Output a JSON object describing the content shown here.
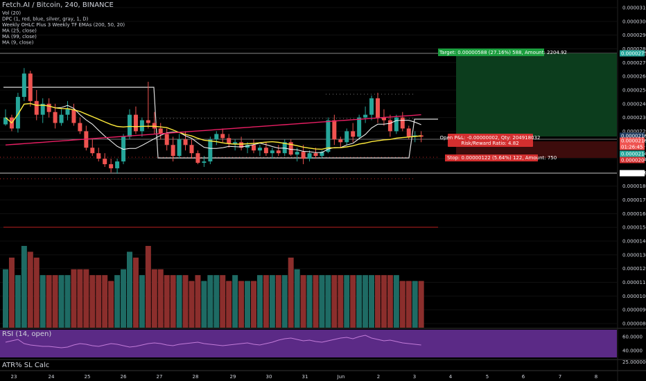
{
  "legend": {
    "title": "Fetch.AI / Bitcoin, 240, BINANCE",
    "items": [
      "Vol (20)",
      "DPC (1, red, blue, silver, gray, 1, D)",
      "Weekly OHLC Plus 3 Weekly TF EMAs (200, 50, 20)",
      "MA (25, close)",
      "MA (99, close)",
      "MA (9, close)"
    ]
  },
  "price_axis": {
    "ticks": [
      "0.00003100",
      "0.00003000",
      "0.00002900",
      "0.00002800",
      "0.00002700",
      "0.00002600",
      "0.00002500",
      "0.00002400",
      "0.00002300",
      "0.00002200",
      "0.00002100",
      "0.00002000",
      "0.00001900",
      "0.00001800",
      "0.00001700",
      "0.00001600",
      "0.00001500",
      "0.00001400",
      "0.00001300",
      "0.00001200",
      "0.00001100",
      "0.00001000",
      "0.00000900",
      "0.00000800"
    ],
    "tags": [
      {
        "text": "0.00002753",
        "color": "#26a69a"
      },
      {
        "text": "0.00002165",
        "color": "#1e3a5f"
      },
      {
        "text": "0.00002163",
        "color": "#ef5350"
      },
      {
        "text": "01:26:45",
        "color": "#ef5350"
      },
      {
        "text": "0.00002143",
        "color": "#26a69a"
      },
      {
        "text": "0.00002043",
        "color": "#d32f2f"
      },
      {
        "text": "0.00001895",
        "color": "#ffffff"
      }
    ]
  },
  "rsi_panel": {
    "label": "RSI (14, open)",
    "ticks": [
      "60.0000",
      "40.0000"
    ],
    "sep_label": "25.0000000"
  },
  "atr_panel": {
    "label": "ATR% SL Calc"
  },
  "time_axis": [
    "23",
    "24",
    "25",
    "26",
    "27",
    "28",
    "29",
    "30",
    "31",
    "Jun",
    "2",
    "3",
    "4",
    "5",
    "6",
    "7",
    "8"
  ],
  "position": {
    "target": "Target: 0.00000588 (27.16%) 588, Amount: 2204.92",
    "open_pl": "Open P&L: -0.00000002, Qty: 204918032",
    "rr": "Risk/Reward Ratio: 4.82",
    "stop": "Stop: 0.00000122 (5.64%) 122, Amount: 750"
  },
  "colors": {
    "up": "#26a69a",
    "down": "#ef5350",
    "vol_up": "#1e6b64",
    "vol_down": "#8b2e2c",
    "ma_yellow": "#ffeb3b",
    "ma_white": "#ffffff",
    "ema_pink": "#e91e63",
    "rsi_bg": "#5b2a86",
    "rsi_line": "#c27bd8"
  },
  "chart_data": {
    "type": "candlestick",
    "timeframe": "240",
    "candles": [
      [
        2.25e-05,
        2.36e-05,
        2.24e-05,
        2.3e-05
      ],
      [
        2.3e-05,
        2.32e-05,
        2.2e-05,
        2.22e-05
      ],
      [
        2.22e-05,
        2.48e-05,
        2.19e-05,
        2.45e-05
      ],
      [
        2.45e-05,
        2.66e-05,
        2.42e-05,
        2.62e-05
      ],
      [
        2.62e-05,
        2.64e-05,
        2.38e-05,
        2.42e-05
      ],
      [
        2.42e-05,
        2.5e-05,
        2.28e-05,
        2.32e-05
      ],
      [
        2.32e-05,
        2.44e-05,
        2.26e-05,
        2.4e-05
      ],
      [
        2.4e-05,
        2.44e-05,
        2.3e-05,
        2.34e-05
      ],
      [
        2.34e-05,
        2.4e-05,
        2.22e-05,
        2.26e-05
      ],
      [
        2.26e-05,
        2.36e-05,
        2.24e-05,
        2.32e-05
      ],
      [
        2.32e-05,
        2.42e-05,
        2.28e-05,
        2.36e-05
      ],
      [
        2.36e-05,
        2.4e-05,
        2.24e-05,
        2.26e-05
      ],
      [
        2.26e-05,
        2.3e-05,
        2.18e-05,
        2.2e-05
      ],
      [
        2.2e-05,
        2.24e-05,
        2.06e-05,
        2.08e-05
      ],
      [
        2.08e-05,
        2.14e-05,
        2.02e-05,
        2.04e-05
      ],
      [
        2.04e-05,
        2.08e-05,
        1.98e-05,
        2e-05
      ],
      [
        2e-05,
        2.04e-05,
        1.94e-05,
        1.96e-05
      ],
      [
        1.96e-05,
        2e-05,
        1.9e-05,
        1.93e-05
      ],
      [
        1.93e-05,
        2e-05,
        1.89e-05,
        1.98e-05
      ],
      [
        1.98e-05,
        2.18e-05,
        1.96e-05,
        2.16e-05
      ],
      [
        2.16e-05,
        2.36e-05,
        2.14e-05,
        2.32e-05
      ],
      [
        2.32e-05,
        2.38e-05,
        2.18e-05,
        2.2e-05
      ],
      [
        2.2e-05,
        2.3e-05,
        2.16e-05,
        2.28e-05
      ],
      [
        2.28e-05,
        2.56e-05,
        2.22e-05,
        2.26e-05
      ],
      [
        2.26e-05,
        2.34e-05,
        2.18e-05,
        2.22e-05
      ],
      [
        2.22e-05,
        2.26e-05,
        2.14e-05,
        2.18e-05
      ],
      [
        2.18e-05,
        2.22e-05,
        2.06e-05,
        2.1e-05
      ],
      [
        2.1e-05,
        2.16e-05,
        1.98e-05,
        2.02e-05
      ],
      [
        2.02e-05,
        2.18e-05,
        2e-05,
        2.14e-05
      ],
      [
        2.14e-05,
        2.2e-05,
        2.06e-05,
        2.1e-05
      ],
      [
        2.1e-05,
        2.14e-05,
        2e-05,
        2.04e-05
      ],
      [
        2.04e-05,
        2.06e-05,
        1.96e-05,
        1.97e-05
      ],
      [
        1.97e-05,
        2.02e-05,
        1.94e-05,
        1.98e-05
      ],
      [
        1.98e-05,
        2.16e-05,
        1.96e-05,
        2.14e-05
      ],
      [
        2.14e-05,
        2.2e-05,
        2.1e-05,
        2.18e-05
      ],
      [
        2.18e-05,
        2.22e-05,
        2.12e-05,
        2.15e-05
      ],
      [
        2.15e-05,
        2.18e-05,
        2.08e-05,
        2.11e-05
      ],
      [
        2.11e-05,
        2.14e-05,
        2.06e-05,
        2.12e-05
      ],
      [
        2.12e-05,
        2.16e-05,
        2.06e-05,
        2.08e-05
      ],
      [
        2.08e-05,
        2.12e-05,
        2.04e-05,
        2.1e-05
      ],
      [
        2.1e-05,
        2.14e-05,
        2.04e-05,
        2.06e-05
      ],
      [
        2.06e-05,
        2.1e-05,
        2.02e-05,
        2.08e-05
      ],
      [
        2.08e-05,
        2.12e-05,
        2.02e-05,
        2.04e-05
      ],
      [
        2.04e-05,
        2.08e-05,
        2e-05,
        2.06e-05
      ],
      [
        2.06e-05,
        2.1e-05,
        2.02e-05,
        2.04e-05
      ],
      [
        2.04e-05,
        2.14e-05,
        2.02e-05,
        2.12e-05
      ],
      [
        2.12e-05,
        2.14e-05,
        2.02e-05,
        2.03e-05
      ],
      [
        2.03e-05,
        2.08e-05,
        1.98e-05,
        2.05e-05
      ],
      [
        2.05e-05,
        2.1e-05,
        1.96e-05,
        2e-05
      ],
      [
        2e-05,
        2.06e-05,
        1.98e-05,
        2.04e-05
      ],
      [
        2.04e-05,
        2.08e-05,
        2e-05,
        2.02e-05
      ],
      [
        2.02e-05,
        2.06e-05,
        2e-05,
        2.05e-05
      ],
      [
        2.05e-05,
        2.3e-05,
        2.04e-05,
        2.28e-05
      ],
      [
        2.28e-05,
        2.32e-05,
        2.1e-05,
        2.14e-05
      ],
      [
        2.14e-05,
        2.16e-05,
        2.08e-05,
        2.12e-05
      ],
      [
        2.12e-05,
        2.22e-05,
        2.1e-05,
        2.2e-05
      ],
      [
        2.2e-05,
        2.26e-05,
        2.12e-05,
        2.16e-05
      ],
      [
        2.16e-05,
        2.32e-05,
        2.14e-05,
        2.3e-05
      ],
      [
        2.3e-05,
        2.38e-05,
        2.26e-05,
        2.32e-05
      ],
      [
        2.32e-05,
        2.46e-05,
        2.28e-05,
        2.44e-05
      ],
      [
        2.44e-05,
        2.48e-05,
        2.26e-05,
        2.3e-05
      ],
      [
        2.3e-05,
        2.36e-05,
        2.24e-05,
        2.28e-05
      ],
      [
        2.28e-05,
        2.32e-05,
        2.16e-05,
        2.2e-05
      ],
      [
        2.2e-05,
        2.32e-05,
        2.18e-05,
        2.3e-05
      ],
      [
        2.3e-05,
        2.34e-05,
        2.2e-05,
        2.22e-05
      ],
      [
        2.22e-05,
        2.24e-05,
        2.14e-05,
        2.16e-05
      ],
      [
        2.16e-05,
        2.2e-05,
        2.12e-05,
        2.17e-05
      ],
      [
        2.17e-05,
        2.2e-05,
        2.12e-05,
        2.16e-05
      ]
    ],
    "volume": [
      1e-06,
      1.2e-06,
      9e-07,
      1.4e-06,
      1.3e-06,
      1.2e-06,
      9e-07,
      9e-07,
      9e-07,
      9e-07,
      9e-07,
      1e-06,
      1e-06,
      1e-06,
      9e-07,
      9e-07,
      9e-07,
      8e-07,
      9e-07,
      1e-06,
      1.3e-06,
      1.2e-06,
      9e-07,
      1.4e-06,
      1e-06,
      1e-06,
      9e-07,
      9e-07,
      9e-07,
      9e-07,
      8e-07,
      9e-07,
      8e-07,
      9e-07,
      9e-07,
      9e-07,
      8e-07,
      9e-07,
      8e-07,
      8e-07,
      8e-07,
      9e-07,
      9e-07,
      9e-07,
      9e-07,
      9e-07,
      1.2e-06,
      1e-06,
      9e-07,
      9e-07,
      9e-07,
      9e-07,
      9e-07,
      9e-07,
      9e-07,
      9e-07,
      9e-07,
      9e-07,
      9e-07,
      9e-07,
      9e-07,
      9e-07,
      9e-07,
      9e-07,
      8e-07,
      8e-07,
      8e-07,
      8e-07
    ]
  }
}
